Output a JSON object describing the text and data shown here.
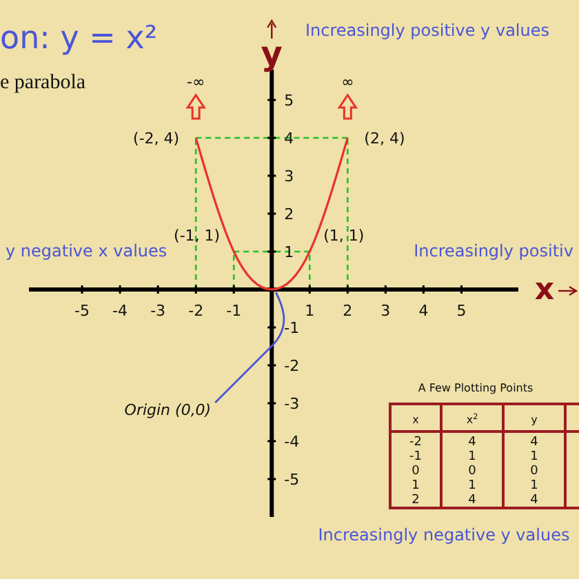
{
  "chart_data": {
    "type": "line",
    "title": "on: y = x²",
    "subtitle": "e parabola",
    "xlabel": "x",
    "ylabel": "y",
    "x": [
      -2,
      -1,
      0,
      1,
      2
    ],
    "series": [
      {
        "color": "#e8332b",
        "values": [
          4,
          1,
          0,
          1,
          4
        ]
      }
    ],
    "xlim": [
      -6.4,
      6.5
    ],
    "ylim": [
      -6,
      5.8
    ],
    "xticks": [
      -5,
      -4,
      -3,
      -2,
      -1,
      1,
      2,
      3,
      4,
      5
    ],
    "yticks": [
      -5,
      -4,
      -3,
      -2,
      -1,
      1,
      2,
      3,
      4,
      5
    ],
    "annotations": [
      "Increasingly positive y values",
      "y negative x values",
      "Increasingly positiv",
      "Increasingly negative y values",
      {
        "text": "Origin (0,0)",
        "x": 0,
        "y": 0
      },
      {
        "text": "(-2, 4)",
        "x": -2,
        "y": 4
      },
      {
        "text": "(2, 4)",
        "x": 2,
        "y": 4
      },
      {
        "text": "(-1, 1)",
        "x": -1,
        "y": 1
      },
      {
        "text": "(1, 1)",
        "x": 1,
        "y": 1
      },
      "-∞",
      "∞",
      "A Few Plotting Points",
      "x$^{2}$",
      "-2",
      "4",
      "4",
      "-1",
      "1",
      "1",
      "0",
      "0",
      "0",
      "1",
      "1",
      "1",
      "2",
      "4",
      "4"
    ]
  }
}
